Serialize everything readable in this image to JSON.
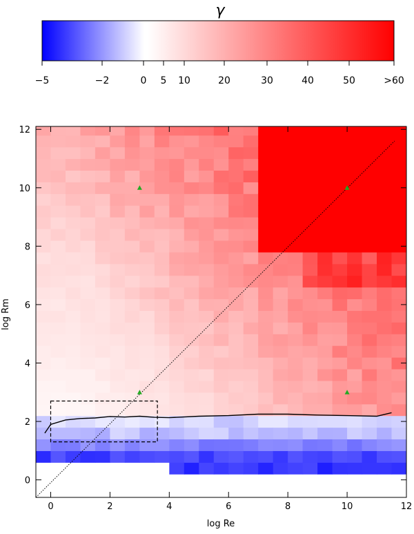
{
  "chart_data": [
    {
      "type": "colorbar",
      "title": "γ",
      "tick_labels": [
        "−5",
        "−2",
        "0",
        "5",
        "10",
        "20",
        "30",
        "40",
        "50",
        ">60"
      ],
      "tick_values": [
        -5,
        -2,
        0,
        5,
        10,
        20,
        30,
        40,
        50,
        60
      ],
      "range": [
        -5,
        60
      ],
      "colors": {
        "low": "#0000ff",
        "zero": "#ffffff",
        "high": "#ff0000"
      }
    },
    {
      "type": "heatmap",
      "xlabel": "log Re",
      "ylabel": "log Rm",
      "xlim": [
        -0.5,
        12.0
      ],
      "ylim": [
        -0.6,
        12.1
      ],
      "x_ticks": [
        0,
        2,
        4,
        6,
        8,
        10,
        12
      ],
      "y_ticks": [
        0,
        2,
        4,
        6,
        8,
        10,
        12
      ],
      "x_tick_labels": [
        "0",
        "2",
        "4",
        "6",
        "8",
        "10",
        "12"
      ],
      "y_tick_labels": [
        "0",
        "2",
        "4",
        "6",
        "8",
        "10",
        "12"
      ],
      "colormap": {
        "low": "#0000ff",
        "zero": "#ffffff",
        "high": "#ff0000",
        "vmin": -5,
        "vmax": 60
      },
      "cells": {
        "x_step": 0.5,
        "y_step": 0.5,
        "comment_free": true,
        "regions": [
          {
            "x": [
              -0.5,
              12.0
            ],
            "y": [
              2.3,
              4.0
            ],
            "gamma": 5
          },
          {
            "x": [
              -0.5,
              12.0
            ],
            "y": [
              4.0,
              6.0
            ],
            "gamma": 12
          },
          {
            "x": [
              7.5,
              12.0
            ],
            "y": [
              6.0,
              7.0
            ],
            "gamma": 35
          },
          {
            "x": [
              7.0,
              12.0
            ],
            "y": [
              8.0,
              12.1
            ],
            "gamma": 60
          },
          {
            "x": [
              -0.5,
              12.0
            ],
            "y": [
              1.3,
              2.3
            ],
            "gamma": -1
          },
          {
            "x": [
              -0.5,
              12.0
            ],
            "y": [
              0.6,
              1.3
            ],
            "gamma": -3
          },
          {
            "x": [
              4.0,
              12.0
            ],
            "y": [
              0.2,
              0.6
            ],
            "gamma": -4
          }
        ]
      },
      "marginal_curve": {
        "name": "",
        "x": [
          -0.2,
          0.0,
          0.5,
          1.0,
          1.5,
          2.0,
          2.5,
          3.0,
          3.5,
          4.0,
          5.0,
          6.0,
          7.0,
          8.0,
          9.0,
          10.0,
          11.0,
          11.5
        ],
        "y": [
          1.6,
          1.9,
          2.05,
          2.1,
          2.12,
          2.17,
          2.15,
          2.18,
          2.14,
          2.13,
          2.18,
          2.2,
          2.25,
          2.25,
          2.22,
          2.2,
          2.18,
          2.3
        ]
      },
      "diagonal_line": {
        "x": [
          -0.5,
          11.6
        ],
        "y": [
          -0.6,
          11.6
        ],
        "style": "dotted"
      },
      "markers": {
        "color": "#22aa22",
        "shape": "triangle",
        "points": [
          {
            "x": 3,
            "y": 10
          },
          {
            "x": 10,
            "y": 10
          },
          {
            "x": 3,
            "y": 3
          },
          {
            "x": 10,
            "y": 3
          }
        ]
      },
      "dashed_box": {
        "x": [
          0.0,
          3.6
        ],
        "y": [
          1.3,
          2.7
        ]
      }
    }
  ]
}
